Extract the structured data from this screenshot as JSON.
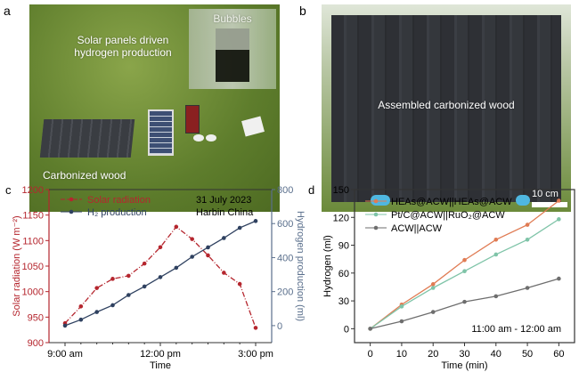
{
  "panels": {
    "a": {
      "label": "a",
      "title": "Solar panels driven hydrogen production",
      "title_l1": "Solar panels driven",
      "title_l2": "hydrogen production",
      "inset": "Bubbles",
      "wood": "Carbonized wood"
    },
    "b": {
      "label": "b",
      "caption": "Assembled carbonized wood",
      "scalebar": "10 cm"
    }
  },
  "chart_data": [
    {
      "panel": "c",
      "type": "line",
      "x": [
        "9:00",
        "9:30",
        "10:00",
        "10:30",
        "11:00",
        "11:30",
        "12:00",
        "12:30",
        "13:00",
        "13:30",
        "14:00",
        "14:30",
        "15:00"
      ],
      "xticks": [
        "9:00 am",
        "12:00 pm",
        "3:00 pm"
      ],
      "xlabel": "Time",
      "ylabel": "Solar radiation (W m⁻²)",
      "ylim": [
        900,
        1200
      ],
      "yticks": [
        900,
        950,
        1000,
        1050,
        1100,
        1150,
        1200
      ],
      "y2label": "Hydrogen production (ml)",
      "y2lim": [
        -100,
        800
      ],
      "y2ticks": [
        0,
        200,
        400,
        600,
        800
      ],
      "annotation": [
        "31 July 2023",
        "Harbin China"
      ],
      "legend": "top-left",
      "series": [
        {
          "name": "Solar radiation",
          "axis": "left",
          "color": "#b5262e",
          "style": "dash-dot",
          "values": [
            938,
            971,
            1007,
            1025,
            1031,
            1055,
            1087,
            1127,
            1103,
            1071,
            1037,
            1015,
            929
          ]
        },
        {
          "name": "H₂ production",
          "axis": "right",
          "color": "#2f4160",
          "style": "solid",
          "values": [
            0,
            35,
            80,
            120,
            180,
            230,
            285,
            340,
            405,
            460,
            515,
            575,
            615
          ]
        }
      ]
    },
    {
      "panel": "d",
      "type": "line",
      "x": [
        0,
        10,
        20,
        30,
        40,
        50,
        60
      ],
      "xlabel": "Time (min)",
      "ylabel": "Hydrogen (ml)",
      "xlim": [
        -5,
        65
      ],
      "ylim": [
        -15,
        150
      ],
      "yticks": [
        0,
        30,
        60,
        90,
        120,
        150
      ],
      "xticks": [
        0,
        10,
        20,
        30,
        40,
        50,
        60
      ],
      "annotation": "11:00 am - 12:00 am",
      "legend": "top-left",
      "series": [
        {
          "name": "HEAs@ACW||HEAs@ACW",
          "color": "#e07b53",
          "values": [
            0,
            26,
            48,
            74,
            96,
            112,
            138
          ]
        },
        {
          "name": "Pt/C@ACW||RuO₂@ACW",
          "color": "#7fc4a8",
          "values": [
            0,
            24,
            44,
            62,
            80,
            96,
            118
          ]
        },
        {
          "name": "ACW||ACW",
          "color": "#6e6e6e",
          "values": [
            0,
            8,
            18,
            29,
            35,
            44,
            54
          ]
        }
      ]
    }
  ]
}
